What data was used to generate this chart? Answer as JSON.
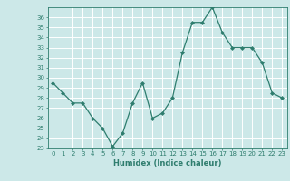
{
  "x": [
    0,
    1,
    2,
    3,
    4,
    5,
    6,
    7,
    8,
    9,
    10,
    11,
    12,
    13,
    14,
    15,
    16,
    17,
    18,
    19,
    20,
    21,
    22,
    23
  ],
  "y": [
    29.5,
    28.5,
    27.5,
    27.5,
    26.0,
    25.0,
    23.2,
    24.5,
    27.5,
    29.5,
    26.0,
    26.5,
    28.0,
    32.5,
    35.5,
    35.5,
    37.0,
    34.5,
    33.0,
    33.0,
    33.0,
    31.5,
    28.5,
    28.0
  ],
  "xlabel": "Humidex (Indice chaleur)",
  "ylim": [
    23,
    37
  ],
  "xlim": [
    -0.5,
    23.5
  ],
  "yticks": [
    23,
    24,
    25,
    26,
    27,
    28,
    29,
    30,
    31,
    32,
    33,
    34,
    35,
    36
  ],
  "xticks": [
    0,
    1,
    2,
    3,
    4,
    5,
    6,
    7,
    8,
    9,
    10,
    11,
    12,
    13,
    14,
    15,
    16,
    17,
    18,
    19,
    20,
    21,
    22,
    23
  ],
  "line_color": "#2e7d6e",
  "marker": "D",
  "marker_size": 2.0,
  "bg_color": "#cce8e8",
  "grid_color": "#ffffff",
  "axes_area": [
    0.165,
    0.18,
    0.825,
    0.78
  ]
}
